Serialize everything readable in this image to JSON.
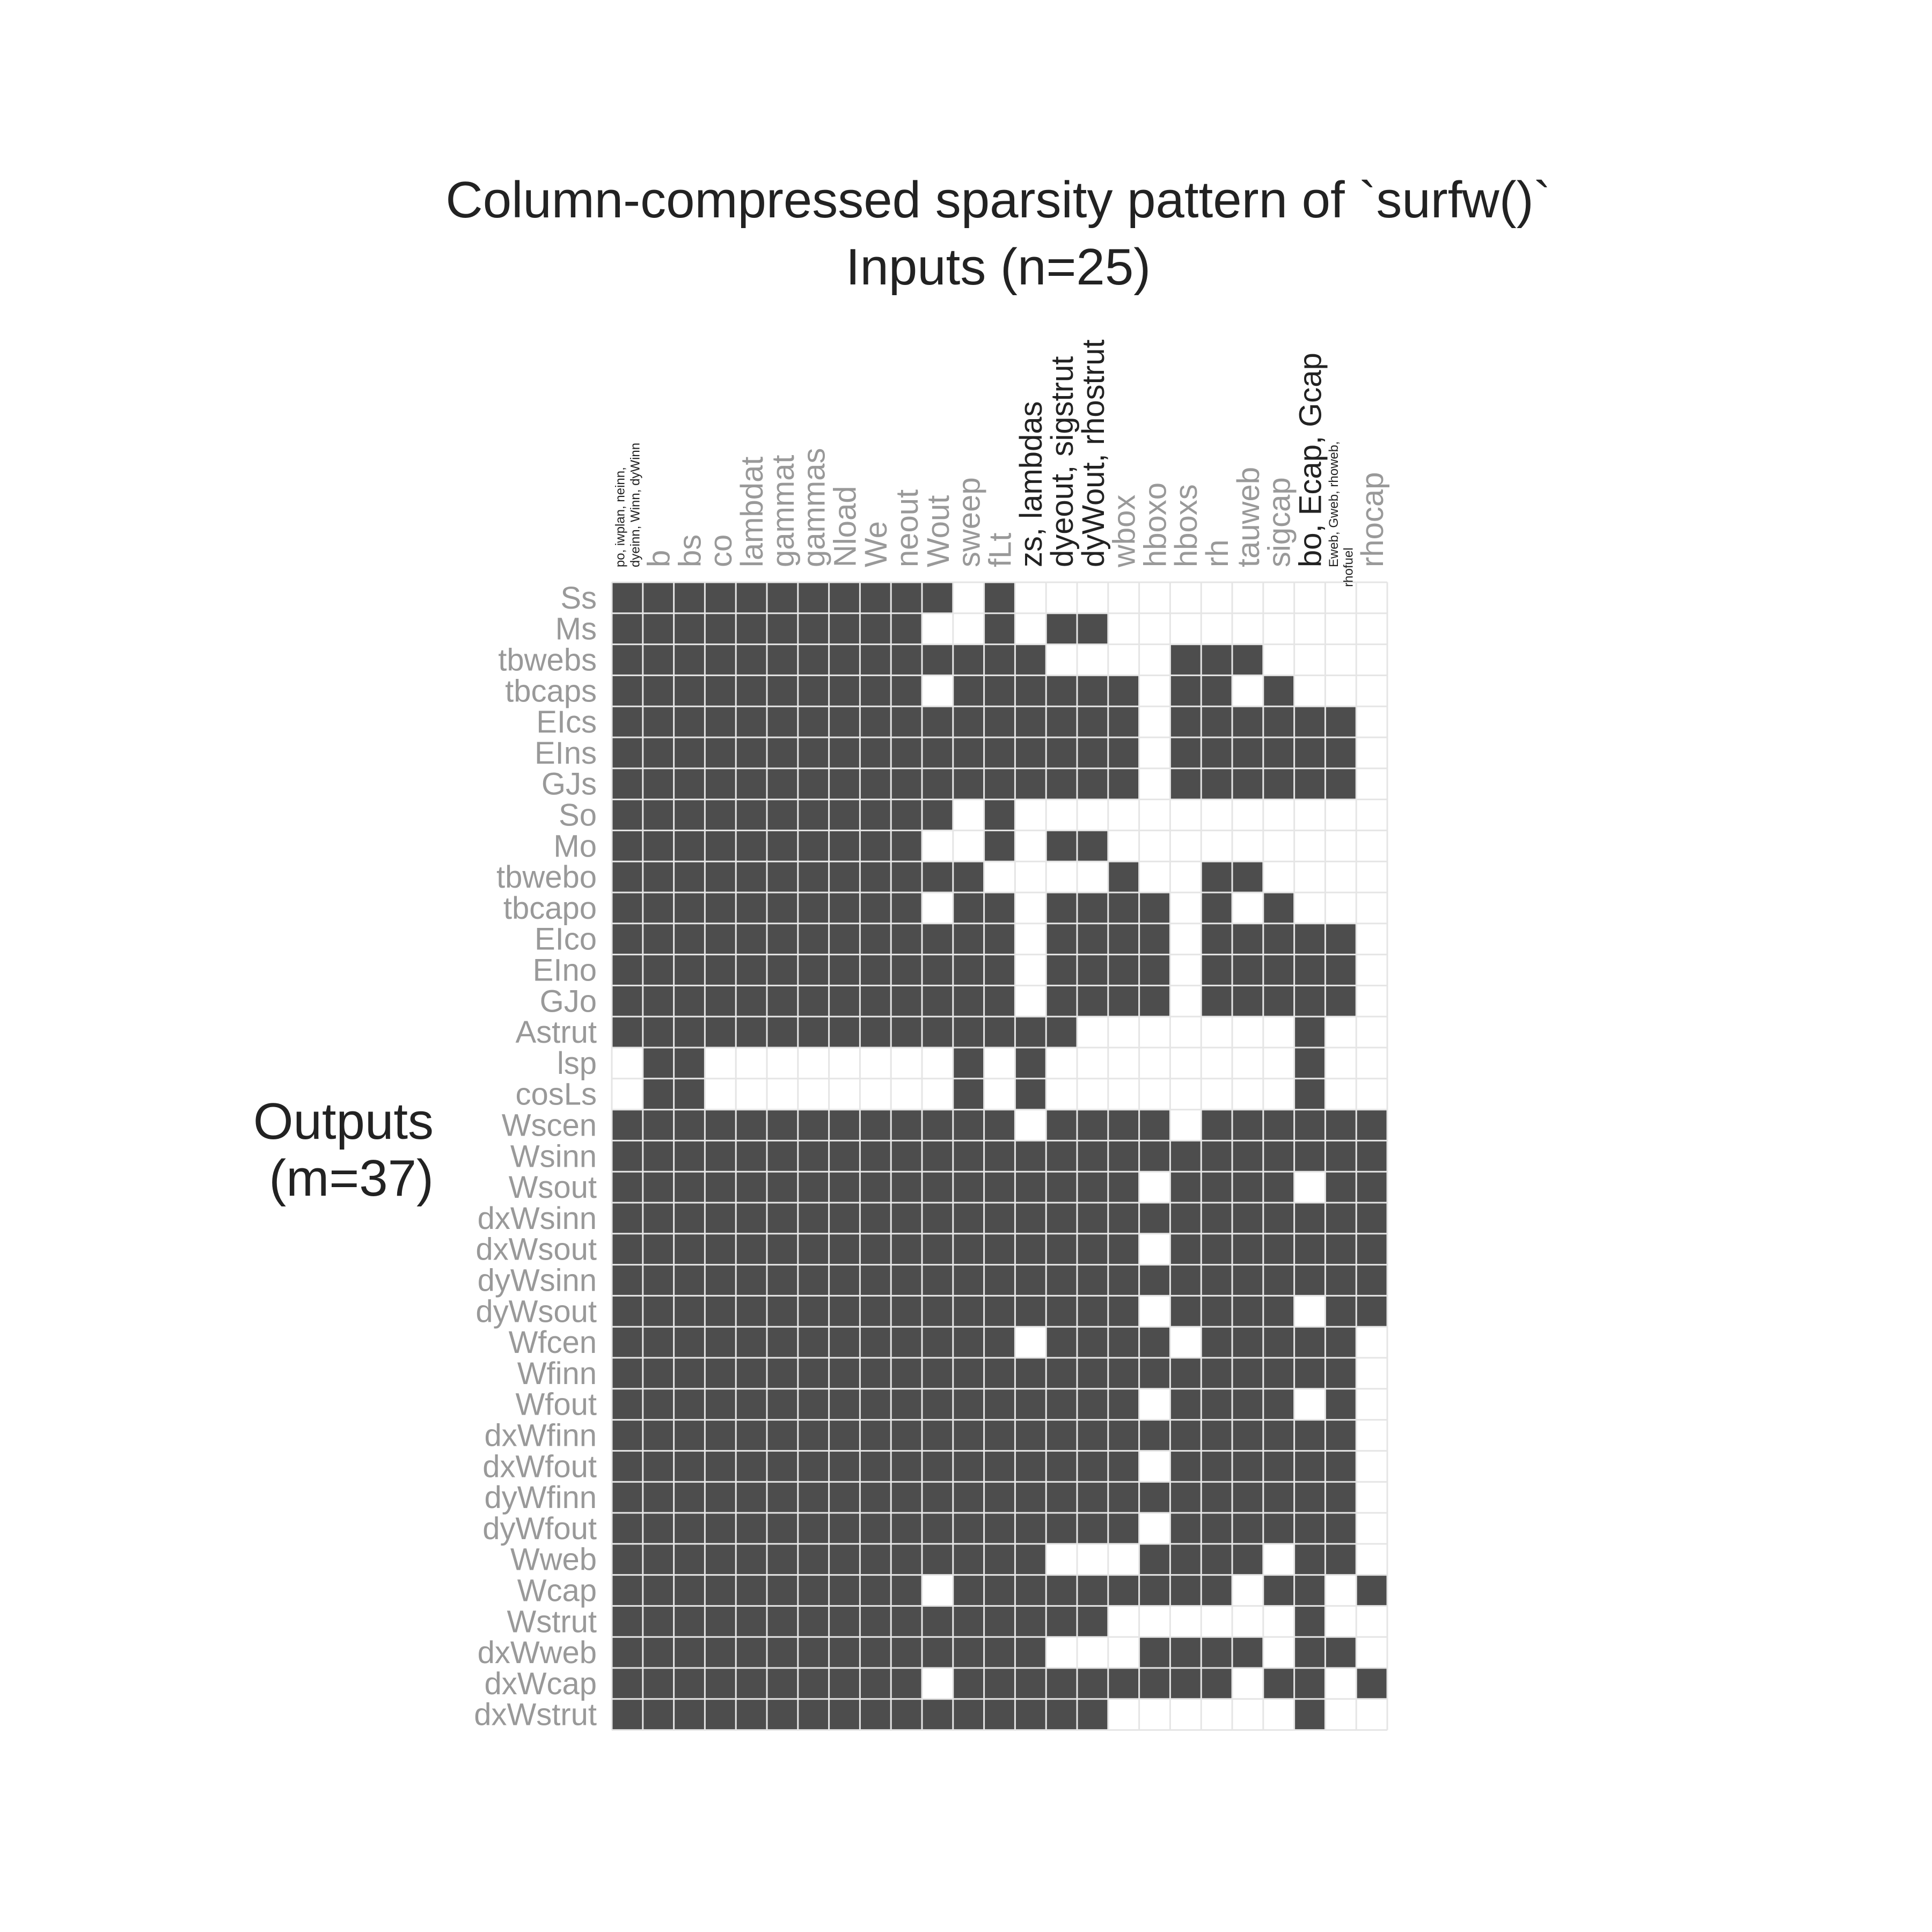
{
  "chart_data": {
    "type": "heatmap",
    "title": "Column-compressed sparsity pattern of `surfw()`",
    "xlabel": "Inputs (n=25)",
    "ylabel": "Outputs\n(m=37)",
    "grid": true,
    "fill_color": "#4d4d4d",
    "empty_color": "#ffffff",
    "grid_color": "#e5e5e5",
    "columns": [
      {
        "label": "po, iwplan, neinn,\ndyeinn, Winn, dyWinn",
        "group": true,
        "small": true
      },
      {
        "label": "b",
        "group": false
      },
      {
        "label": "bs",
        "group": false
      },
      {
        "label": "co",
        "group": false
      },
      {
        "label": "lambdat",
        "group": false
      },
      {
        "label": "gammat",
        "group": false
      },
      {
        "label": "gammas",
        "group": false
      },
      {
        "label": "Nload",
        "group": false
      },
      {
        "label": "We",
        "group": false
      },
      {
        "label": "neout",
        "group": false
      },
      {
        "label": "Wout",
        "group": false
      },
      {
        "label": "sweep",
        "group": false
      },
      {
        "label": "fLt",
        "group": false
      },
      {
        "label": "zs, lambdas",
        "group": true
      },
      {
        "label": "dyeout, sigstrut",
        "group": true
      },
      {
        "label": "dyWout, rhostrut",
        "group": true
      },
      {
        "label": "wbox",
        "group": false
      },
      {
        "label": "hboxo",
        "group": false
      },
      {
        "label": "hboxs",
        "group": false
      },
      {
        "label": "rh",
        "group": false
      },
      {
        "label": "tauweb",
        "group": false
      },
      {
        "label": "sigcap",
        "group": false
      },
      {
        "label": "bo, Ecap, Gcap",
        "group": true
      },
      {
        "label": "Eweb, Gweb, rhoweb,\nrhofuel",
        "group": true,
        "small": true
      },
      {
        "label": "rhocap",
        "group": false
      }
    ],
    "rows": [
      "Ss",
      "Ms",
      "tbwebs",
      "tbcaps",
      "EIcs",
      "EIns",
      "GJs",
      "So",
      "Mo",
      "tbwebo",
      "tbcapo",
      "EIco",
      "EIno",
      "GJo",
      "Astrut",
      "lsp",
      "cosLs",
      "Wscen",
      "Wsinn",
      "Wsout",
      "dxWsinn",
      "dxWsout",
      "dyWsinn",
      "dyWsout",
      "Wfcen",
      "Wfinn",
      "Wfout",
      "dxWfinn",
      "dxWfout",
      "dyWfinn",
      "dyWfout",
      "Wweb",
      "Wcap",
      "Wstrut",
      "dxWweb",
      "dxWcap",
      "dxWstrut"
    ],
    "pattern": [
      "1111111111101000000000000",
      "1111111111001011000000000",
      "1111111111111100001110000",
      "1111111111011111101101000",
      "1111111111111111101111110",
      "1111111111111111101111110",
      "1111111111111111101111110",
      "1111111111101000000000000",
      "1111111111001011000000000",
      "1111111111110000100110000",
      "1111111111011011110101000",
      "1111111111111011110111110",
      "1111111111111011110111110",
      "1111111111111011110111110",
      "1111111111111110000000100",
      "0110000000010100000000100",
      "0110000000010100000000100",
      "1111111111111011110111111",
      "1111111111111111111111111",
      "1111111111111111101111011",
      "1111111111111111111111111",
      "1111111111111111101111111",
      "1111111111111111111111111",
      "1111111111111111101111011",
      "1111111111111011110111110",
      "1111111111111111111111110",
      "1111111111111111101111010",
      "1111111111111111111111110",
      "1111111111111111101111110",
      "1111111111111111111111110",
      "1111111111111111101111110",
      "1111111111111100011110110",
      "1111111111011111111101101",
      "1111111111111111000000100",
      "1111111111111100011110110",
      "1111111111011111111101101",
      "1111111111111111000000100"
    ]
  }
}
